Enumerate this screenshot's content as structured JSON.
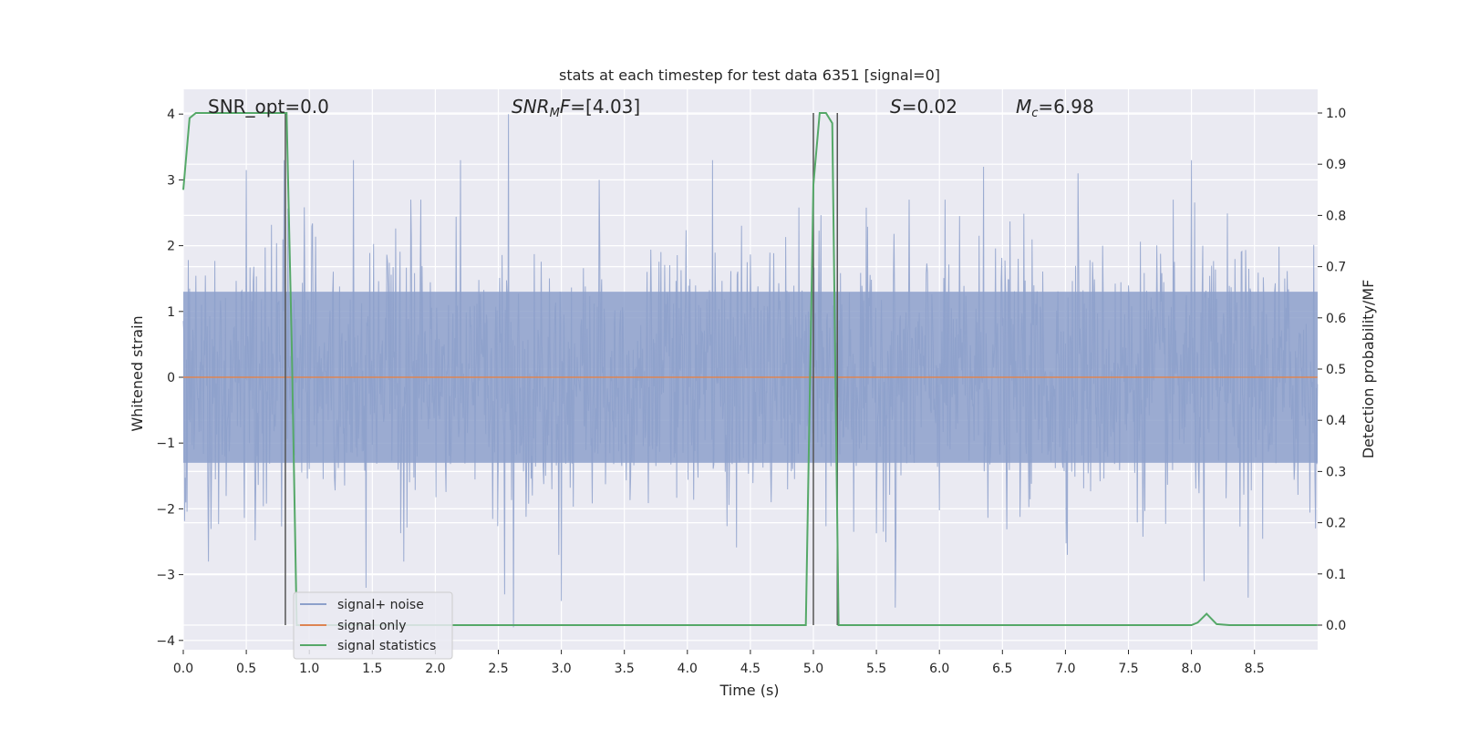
{
  "chart_data": {
    "type": "line",
    "title": "stats at each timestep for test data 6351 [signal=0]",
    "xlabel": "Time (s)",
    "ylabel_left": "Whitened strain",
    "ylabel_right": "Detection probability/MF",
    "xlim": [
      0.0,
      9.0
    ],
    "ylim_left": [
      -4.15,
      4.35
    ],
    "ylim_right": [
      -0.048,
      1.048
    ],
    "x_ticks": [
      "0.0",
      "0.5",
      "1.0",
      "1.5",
      "2.0",
      "2.5",
      "3.0",
      "3.5",
      "4.0",
      "4.5",
      "5.0",
      "5.5",
      "6.0",
      "6.5",
      "7.0",
      "7.5",
      "8.0",
      "8.5"
    ],
    "y_ticks_left": [
      "−4",
      "−3",
      "−2",
      "−1",
      "0",
      "1",
      "2",
      "3",
      "4"
    ],
    "y_ticks_right": [
      "0.0",
      "0.1",
      "0.2",
      "0.3",
      "0.4",
      "0.5",
      "0.6",
      "0.7",
      "0.8",
      "0.9",
      "1.0"
    ],
    "grid": true,
    "legend_position": "lower-left",
    "annotations": {
      "snr_opt": "SNR_opt=0.0",
      "snr_mf_base": "SNR",
      "snr_mf_sub": "M",
      "snr_mf_rest": "F=[4.03]",
      "s_italic": "S",
      "s_rest": "=0.02",
      "mc_base": "M",
      "mc_sub": "c",
      "mc_rest": "=6.98"
    },
    "series": [
      {
        "name": "signal+ noise",
        "color": "#8da0cb",
        "description_values": "noise strain, approx. uniform band ±1.5 with spikes up to ±3.9",
        "spikes": [
          [
            0.5,
            3.15
          ],
          [
            0.8,
            3.3
          ],
          [
            1.35,
            3.3
          ],
          [
            2.2,
            3.3
          ],
          [
            2.58,
            4.0
          ],
          [
            2.62,
            -3.8
          ],
          [
            3.3,
            3.0
          ],
          [
            4.2,
            3.3
          ],
          [
            5.65,
            -3.5
          ],
          [
            6.35,
            3.2
          ],
          [
            7.1,
            3.1
          ],
          [
            8.0,
            3.3
          ],
          [
            8.1,
            -3.1
          ],
          [
            8.45,
            -3.35
          ],
          [
            1.45,
            -3.2
          ],
          [
            2.55,
            -3.3
          ],
          [
            3.0,
            -3.4
          ],
          [
            0.2,
            -2.8
          ],
          [
            1.75,
            -2.8
          ]
        ]
      },
      {
        "name": "signal only",
        "color": "#dd8452",
        "x": [
          0.0,
          9.0
        ],
        "y": [
          0.0,
          0.0
        ]
      },
      {
        "name": "signal statistics",
        "color": "#55a868",
        "axis": "right",
        "x": [
          0.0,
          0.05,
          0.1,
          0.2,
          0.3,
          0.4,
          0.5,
          0.6,
          0.7,
          0.78,
          0.82,
          0.86,
          0.9,
          1.0,
          1.5,
          2.0,
          2.5,
          3.0,
          3.5,
          4.0,
          4.5,
          4.94,
          5.0,
          5.05,
          5.1,
          5.15,
          5.2,
          5.25,
          5.3,
          5.5,
          6.0,
          6.5,
          7.0,
          7.5,
          8.0,
          8.05,
          8.12,
          8.2,
          8.3,
          8.5,
          9.0
        ],
        "y": [
          0.85,
          0.99,
          1.0,
          1.0,
          1.0,
          1.0,
          1.0,
          1.0,
          1.0,
          1.0,
          1.0,
          0.55,
          0.0,
          0.0,
          0.0,
          0.0,
          0.0,
          0.0,
          0.0,
          0.0,
          0.0,
          0.0,
          0.86,
          1.0,
          1.0,
          0.98,
          0.0,
          0.0,
          0.0,
          0.0,
          0.0,
          0.0,
          0.0,
          0.0,
          0.0,
          0.005,
          0.022,
          0.002,
          0.0,
          0.0,
          0.0
        ]
      }
    ],
    "vertical_lines": [
      {
        "x": 0.81,
        "color": "#555555"
      },
      {
        "x": 5.0,
        "color": "#555555"
      },
      {
        "x": 5.19,
        "color": "#555555"
      }
    ]
  }
}
